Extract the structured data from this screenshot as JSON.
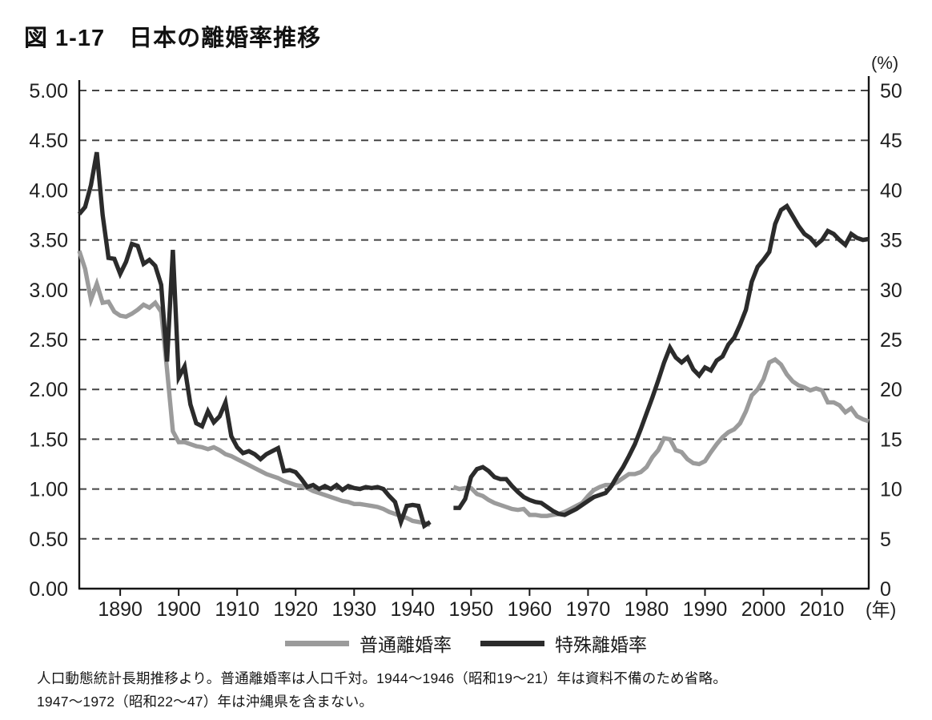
{
  "title": "図 1-17　日本の離婚率推移",
  "legend": {
    "items": [
      {
        "label": "普通離婚率",
        "color": "#9b9b9b"
      },
      {
        "label": "特殊離婚率",
        "color": "#2b2b2b"
      }
    ]
  },
  "footnote": {
    "line1": "人口動態統計長期推移より。普通離婚率は人口千対。1944～1946（昭和19～21）年は資料不備のため省略。",
    "line2": "1947～1972（昭和22～47）年は沖縄県を含まない。"
  },
  "chart_data": {
    "type": "line",
    "title": "図1-17 日本の離婚率推移",
    "grid": "horizontal-dashed",
    "grid_color": "#454545",
    "axis_color": "#151515",
    "legend_position": "bottom-center",
    "x_range": [
      1883,
      2018
    ],
    "x_ticks": [
      1890,
      1900,
      1910,
      1920,
      1930,
      1940,
      1950,
      1960,
      1970,
      1980,
      1990,
      2000,
      2010
    ],
    "x_unit_label": "(年)",
    "left_axis": {
      "min": 0,
      "max": 5,
      "tick_labels": [
        "5.00",
        "4.50",
        "4.00",
        "3.50",
        "3.00",
        "2.50",
        "2.00",
        "1.50",
        "1.00",
        "0.50",
        "0.00"
      ]
    },
    "right_axis": {
      "min": 0,
      "max": 50,
      "unit_label": "(%)",
      "tick_labels": [
        "50",
        "45",
        "40",
        "35",
        "30",
        "25",
        "20",
        "15",
        "10",
        "5",
        "0"
      ]
    },
    "gap_note": "1944-1946 omitted",
    "series": [
      {
        "name": "普通離婚率",
        "axis": "left",
        "color": "#9b9b9b",
        "segments": [
          {
            "start_year": 1883,
            "values": [
              3.39,
              3.21,
              2.9,
              3.06,
              2.87,
              2.88,
              2.78,
              2.74,
              2.73,
              2.76,
              2.8,
              2.85,
              2.82,
              2.87,
              2.78,
              2.2,
              1.58,
              1.47,
              1.47,
              1.45,
              1.43,
              1.42,
              1.4,
              1.42,
              1.39,
              1.35,
              1.33,
              1.3,
              1.27,
              1.24,
              1.21,
              1.18,
              1.15,
              1.13,
              1.11,
              1.08,
              1.06,
              1.04,
              1.03,
              1.01,
              0.98,
              0.96,
              0.94,
              0.92,
              0.9,
              0.88,
              0.87,
              0.85,
              0.85,
              0.84,
              0.83,
              0.82,
              0.8,
              0.77,
              0.75,
              0.73,
              0.71,
              0.68,
              0.67,
              0.66,
              0.64
            ]
          },
          {
            "start_year": 1947,
            "values": [
              1.02,
              1.0,
              1.01,
              1.01,
              0.95,
              0.93,
              0.89,
              0.86,
              0.84,
              0.82,
              0.8,
              0.79,
              0.8,
              0.74,
              0.74,
              0.73,
              0.73,
              0.74,
              0.75,
              0.77,
              0.8,
              0.83,
              0.86,
              0.93,
              0.99,
              1.02,
              1.04,
              1.04,
              1.07,
              1.11,
              1.15,
              1.15,
              1.17,
              1.22,
              1.32,
              1.39,
              1.51,
              1.5,
              1.39,
              1.37,
              1.3,
              1.26,
              1.25,
              1.28,
              1.37,
              1.45,
              1.52,
              1.57,
              1.6,
              1.66,
              1.78,
              1.94,
              2.0,
              2.1,
              2.27,
              2.3,
              2.25,
              2.15,
              2.08,
              2.04,
              2.02,
              1.99,
              2.01,
              1.99,
              1.87,
              1.87,
              1.84,
              1.77,
              1.81,
              1.73,
              1.7,
              1.68
            ]
          }
        ]
      },
      {
        "name": "特殊離婚率",
        "axis": "right",
        "color": "#2b2b2b",
        "segments": [
          {
            "start_year": 1883,
            "values": [
              37.6,
              38.3,
              40.5,
              43.8,
              37.5,
              33.2,
              33.1,
              31.6,
              32.8,
              34.6,
              34.4,
              32.6,
              33.0,
              32.4,
              30.5,
              22.8,
              34.0,
              21.2,
              22.3,
              18.5,
              16.6,
              16.3,
              17.8,
              16.7,
              17.3,
              18.7,
              15.3,
              14.2,
              13.6,
              13.8,
              13.5,
              13.0,
              13.5,
              13.8,
              14.1,
              11.8,
              11.9,
              11.7,
              11.0,
              10.2,
              10.4,
              10.0,
              10.3,
              10.0,
              10.4,
              9.9,
              10.3,
              10.1,
              10.0,
              10.2,
              10.1,
              10.2,
              10.0,
              9.3,
              8.7,
              6.7,
              8.3,
              8.4,
              8.3,
              6.3,
              6.7
            ]
          },
          {
            "start_year": 1947,
            "values": [
              8.1,
              8.1,
              9.0,
              11.2,
              12.0,
              12.2,
              11.8,
              11.2,
              11.0,
              11.0,
              10.3,
              9.7,
              9.2,
              8.9,
              8.7,
              8.6,
              8.2,
              7.8,
              7.5,
              7.4,
              7.7,
              8.0,
              8.4,
              8.8,
              9.2,
              9.4,
              9.6,
              10.3,
              11.3,
              12.2,
              13.3,
              14.5,
              16.0,
              17.6,
              19.2,
              20.9,
              22.7,
              24.2,
              23.2,
              22.7,
              23.2,
              22.0,
              21.4,
              22.2,
              21.9,
              22.9,
              23.3,
              24.5,
              25.2,
              26.5,
              28.0,
              30.8,
              32.3,
              33.0,
              33.8,
              36.6,
              38.0,
              38.4,
              37.4,
              36.4,
              35.6,
              35.2,
              34.5,
              35.0,
              35.9,
              35.6,
              35.0,
              34.5,
              35.6,
              35.2,
              35.0,
              35.1
            ]
          }
        ]
      }
    ]
  }
}
